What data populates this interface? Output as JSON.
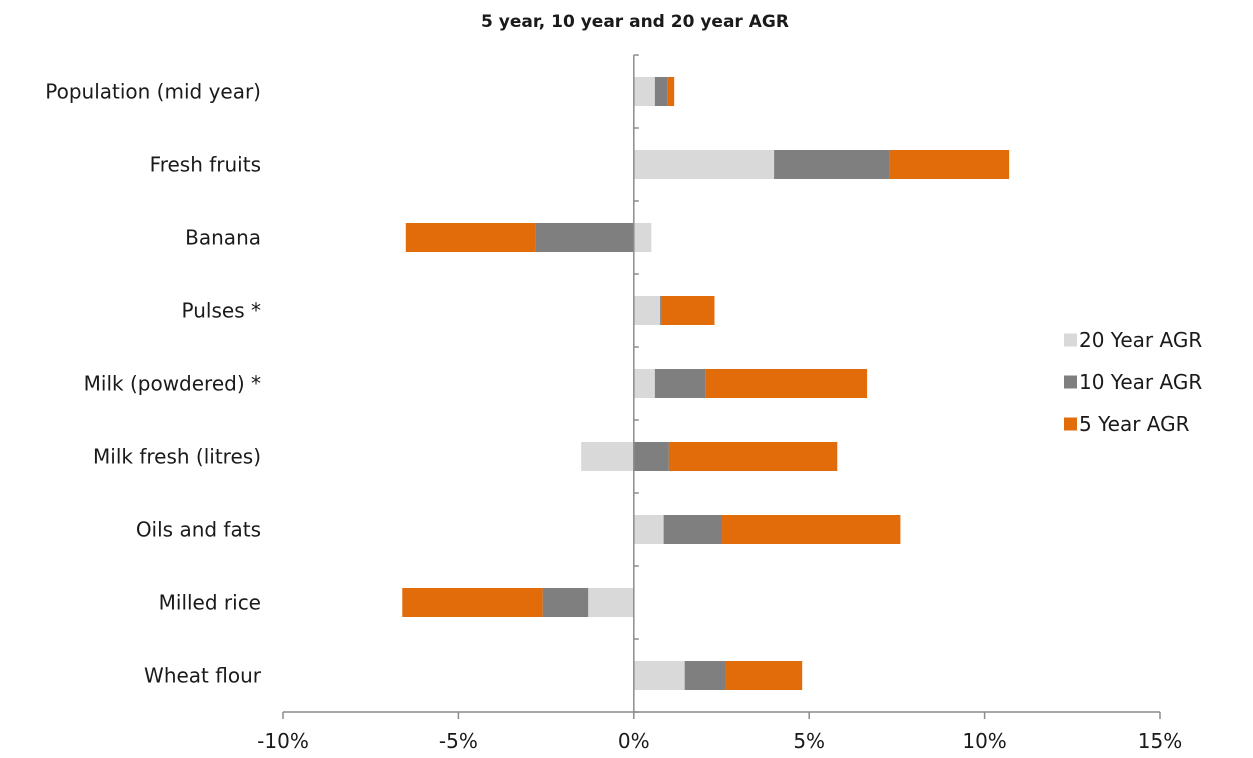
{
  "chart_data": {
    "type": "bar",
    "orientation": "horizontal",
    "stacked": true,
    "title": "5 year, 10 year and 20 year AGR",
    "xlabel": "",
    "ylabel": "",
    "xlim": [
      -10,
      15
    ],
    "xticks": [
      -10,
      -5,
      0,
      5,
      10,
      15
    ],
    "xtick_labels": [
      "-10%",
      "-5%",
      "0%",
      "5%",
      "10%",
      "15%"
    ],
    "categories": [
      "Population (mid year)",
      "Fresh fruits",
      "Banana",
      "Pulses *",
      "Milk (powdered) *",
      "Milk fresh (litres)",
      "Oils and fats",
      "Milled rice",
      "Wheat flour"
    ],
    "series": [
      {
        "name": "20 Year AGR",
        "color": "#d9d9d9",
        "values": [
          0.6,
          4.0,
          0.5,
          0.75,
          0.6,
          -1.5,
          0.85,
          -1.3,
          1.45
        ]
      },
      {
        "name": "10 Year AGR",
        "color": "#7f7f7f",
        "values": [
          0.35,
          3.3,
          -2.8,
          0.05,
          1.45,
          1.0,
          1.65,
          -1.3,
          1.15
        ]
      },
      {
        "name": "5 Year AGR",
        "color": "#e36c0a",
        "values": [
          0.2,
          3.4,
          -3.7,
          1.5,
          4.6,
          4.8,
          5.1,
          -4.0,
          2.2
        ]
      }
    ],
    "legend_position": "right",
    "grid": false
  }
}
